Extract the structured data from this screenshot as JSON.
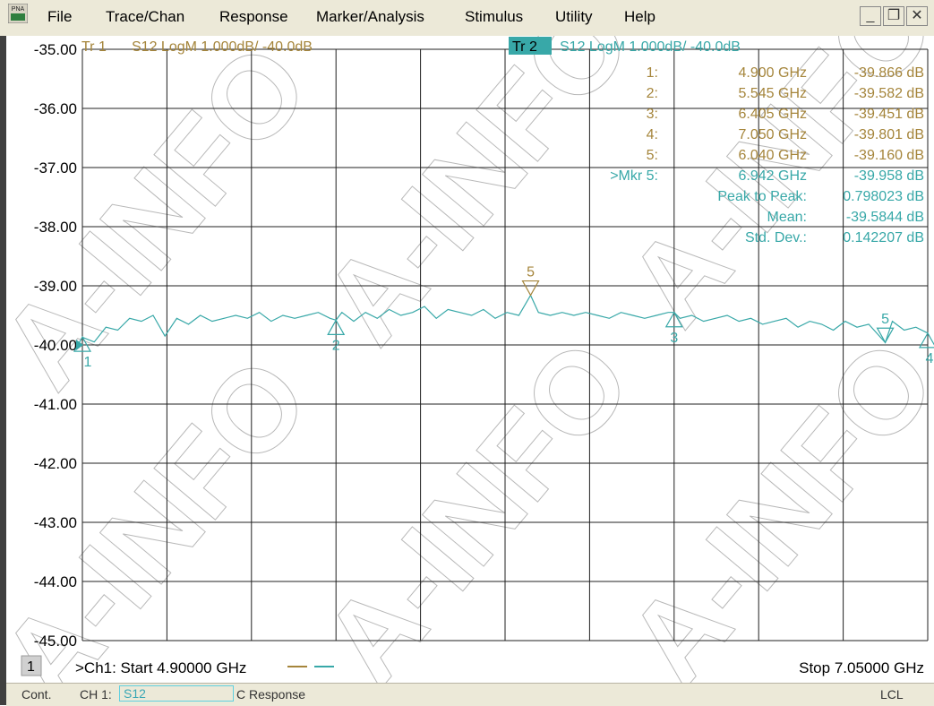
{
  "menu": {
    "app_badge": "PNA",
    "items": [
      "File",
      "Trace/Chan",
      "Response",
      "Marker/Analysis",
      "Stimulus",
      "Utility",
      "Help"
    ],
    "window_buttons": [
      "_",
      "❐",
      "✕"
    ]
  },
  "colors": {
    "trace1": "#a5853b",
    "trace2": "#38a8a8",
    "grid": "#202020"
  },
  "chart_data": {
    "type": "line",
    "traces": [
      {
        "tag": "Tr 1",
        "label": "S12 LogM 1.000dB/  -40.0dB",
        "active": false
      },
      {
        "tag": "Tr 2",
        "label": "S12 LogM 1.000dB/  -40.0dB",
        "active": true
      }
    ],
    "y_ticks": [
      "-35.00",
      "-36.00",
      "-37.00",
      "-38.00",
      "-39.00",
      "-40.00",
      "-41.00",
      "-42.00",
      "-43.00",
      "-44.00",
      "-45.00"
    ],
    "ylim": [
      -45,
      -35
    ],
    "xlim": [
      4.9,
      7.05
    ],
    "grid": true,
    "series": [
      {
        "color": "#38a8a8",
        "x": [
          4.9,
          4.93,
          4.96,
          4.99,
          5.02,
          5.05,
          5.08,
          5.11,
          5.14,
          5.17,
          5.2,
          5.23,
          5.26,
          5.29,
          5.32,
          5.35,
          5.38,
          5.41,
          5.44,
          5.47,
          5.5,
          5.53,
          5.545,
          5.56,
          5.59,
          5.62,
          5.65,
          5.68,
          5.71,
          5.74,
          5.77,
          5.8,
          5.83,
          5.86,
          5.89,
          5.92,
          5.95,
          5.98,
          6.01,
          6.04,
          6.06,
          6.09,
          6.12,
          6.15,
          6.18,
          6.21,
          6.24,
          6.27,
          6.3,
          6.33,
          6.36,
          6.39,
          6.405,
          6.42,
          6.45,
          6.48,
          6.51,
          6.54,
          6.57,
          6.6,
          6.63,
          6.66,
          6.69,
          6.72,
          6.75,
          6.78,
          6.81,
          6.84,
          6.87,
          6.9,
          6.942,
          6.96,
          6.99,
          7.02,
          7.05
        ],
        "y": [
          -39.87,
          -39.95,
          -39.7,
          -39.75,
          -39.55,
          -39.6,
          -39.5,
          -39.85,
          -39.55,
          -39.65,
          -39.5,
          -39.6,
          -39.55,
          -39.5,
          -39.55,
          -39.45,
          -39.6,
          -39.5,
          -39.55,
          -39.5,
          -39.45,
          -39.55,
          -39.58,
          -39.45,
          -39.6,
          -39.45,
          -39.55,
          -39.4,
          -39.5,
          -39.45,
          -39.35,
          -39.55,
          -39.4,
          -39.45,
          -39.5,
          -39.4,
          -39.55,
          -39.45,
          -39.5,
          -39.16,
          -39.45,
          -39.5,
          -39.45,
          -39.5,
          -39.45,
          -39.5,
          -39.55,
          -39.45,
          -39.5,
          -39.55,
          -39.5,
          -39.45,
          -39.45,
          -39.55,
          -39.5,
          -39.6,
          -39.55,
          -39.5,
          -39.6,
          -39.55,
          -39.65,
          -39.6,
          -39.55,
          -39.7,
          -39.6,
          -39.65,
          -39.75,
          -39.6,
          -39.7,
          -39.65,
          -39.96,
          -39.6,
          -39.75,
          -39.7,
          -39.8
        ]
      }
    ],
    "markers": [
      {
        "label": "1",
        "x": 4.9,
        "y": -39.866,
        "color": "#38a8a8",
        "dir": "up"
      },
      {
        "label": "2",
        "x": 5.545,
        "y": -39.582,
        "color": "#38a8a8",
        "dir": "up"
      },
      {
        "label": "3",
        "x": 6.405,
        "y": -39.451,
        "color": "#38a8a8",
        "dir": "up"
      },
      {
        "label": "4",
        "x": 7.05,
        "y": -39.801,
        "color": "#38a8a8",
        "dir": "up"
      },
      {
        "label": "5",
        "x": 6.04,
        "y": -39.16,
        "color": "#a5853b",
        "dir": "down"
      },
      {
        "label": "5",
        "x": 6.942,
        "y": -39.958,
        "color": "#38a8a8",
        "dir": "down"
      }
    ],
    "marker_table": [
      {
        "num": "1:",
        "freq": "4.900 GHz",
        "value": "-39.866 dB",
        "color": "#a5853b"
      },
      {
        "num": "2:",
        "freq": "5.545 GHz",
        "value": "-39.582 dB",
        "color": "#a5853b"
      },
      {
        "num": "3:",
        "freq": "6.405 GHz",
        "value": "-39.451 dB",
        "color": "#a5853b"
      },
      {
        "num": "4:",
        "freq": "7.050 GHz",
        "value": "-39.801 dB",
        "color": "#a5853b"
      },
      {
        "num": "5:",
        "freq": "6.040 GHz",
        "value": "-39.160 dB",
        "color": "#a5853b"
      },
      {
        "num": ">Mkr 5:",
        "freq": "6.942 GHz",
        "value": "-39.958 dB",
        "color": "#38a8a8"
      }
    ],
    "stats": [
      {
        "label": "Peak to Peak:",
        "value": "0.798023 dB"
      },
      {
        "label": "Mean:",
        "value": "-39.5844 dB"
      },
      {
        "label": "Std. Dev.:",
        "value": "0.142207 dB"
      }
    ],
    "reference_value": -40,
    "footer": {
      "channel_number": "1",
      "start_label": ">Ch1: Start  4.90000 GHz",
      "stop_label": "Stop  7.05000 GHz"
    }
  },
  "watermark": "A-INFO",
  "statusbar": {
    "mode": "Cont.",
    "channel": "CH 1:",
    "param": "S12",
    "cal": "C  Response",
    "remote": "LCL"
  }
}
